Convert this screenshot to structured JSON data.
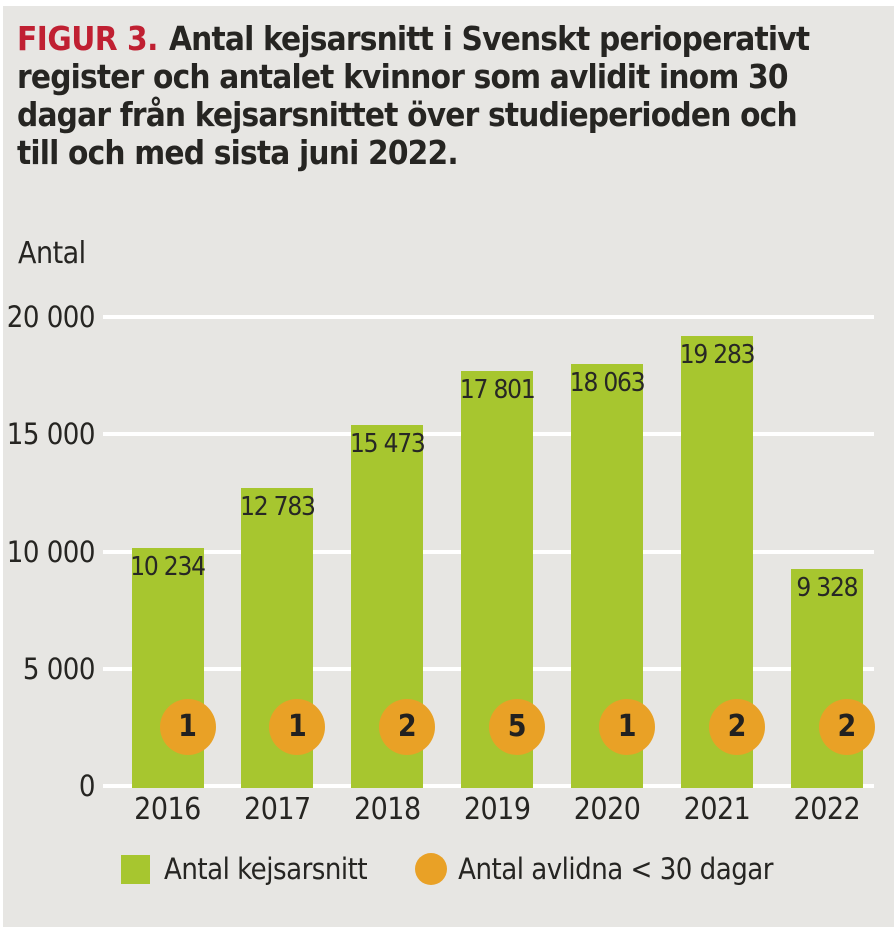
{
  "figure": {
    "label": "FIGUR 3.",
    "title_lines": [
      "Antal kejsarsnitt i Svenskt perioperativt",
      "register och antalet kvinnor som avlidit inom 30",
      "dagar från kejsarsnittet över studieperioden och",
      "till och med sista juni 2022."
    ]
  },
  "chart_data": {
    "type": "bar",
    "title": "Antal kejsarsnitt i Svenskt perioperativt register och antalet kvinnor som avlidit inom 30 dagar från kejsarsnittet över studieperioden och till och med sista juni 2022.",
    "ylabel": "Antal",
    "xlabel": "",
    "categories": [
      "2016",
      "2017",
      "2018",
      "2019",
      "2020",
      "2021",
      "2022"
    ],
    "series": [
      {
        "name": "Antal kejsarsnitt",
        "type": "bar",
        "color": "#a7c62f",
        "values": [
          10234,
          12783,
          15473,
          17801,
          18063,
          19283,
          9328
        ],
        "value_labels": [
          "10 234",
          "12 783",
          "15 473",
          "17 801",
          "18 063",
          "19 283",
          "9 328"
        ]
      },
      {
        "name": "Antal avlidna < 30 dagar",
        "type": "circle-marker",
        "color": "#e9a126",
        "values": [
          1,
          1,
          2,
          5,
          1,
          2,
          2
        ]
      }
    ],
    "ylim": [
      0,
      20000
    ],
    "yticks": [
      {
        "value": 0,
        "label": "0"
      },
      {
        "value": 5000,
        "label": "5 000"
      },
      {
        "value": 10000,
        "label": "10 000"
      },
      {
        "value": 15000,
        "label": "15 000"
      },
      {
        "value": 20000,
        "label": "20 000"
      }
    ],
    "grid": true,
    "legend_position": "bottom"
  },
  "colors": {
    "background": "#e7e6e3",
    "page": "#ffffff",
    "text": "#262522",
    "accent_red": "#c02032",
    "bar_green": "#a7c62f",
    "badge_orange": "#e9a126",
    "gridline": "#ffffff"
  }
}
